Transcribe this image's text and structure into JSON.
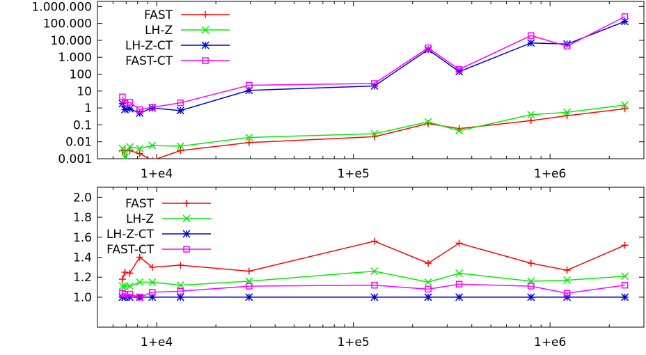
{
  "chart_data": [
    {
      "type": "line",
      "title": "",
      "xlabel": "",
      "ylabel": "",
      "x_scale": "log",
      "y_scale": "log",
      "xlim": [
        5000,
        3000000
      ],
      "ylim": [
        0.001,
        2000000
      ],
      "x_ticks": [
        {
          "value": 10000,
          "label": "1+e4"
        },
        {
          "value": 100000,
          "label": "1+e5"
        },
        {
          "value": 1000000,
          "label": "1+e6"
        }
      ],
      "y_ticks": [
        {
          "value": 0.001,
          "label": "0.001"
        },
        {
          "value": 0.01,
          "label": "0.01"
        },
        {
          "value": 0.1,
          "label": "0.1"
        },
        {
          "value": 1,
          "label": "1"
        },
        {
          "value": 10,
          "label": "10"
        },
        {
          "value": 100,
          "label": "100"
        },
        {
          "value": 1000,
          "label": "1.000"
        },
        {
          "value": 10000,
          "label": "10.000"
        },
        {
          "value": 100000,
          "label": "100.000"
        },
        {
          "value": 1000000,
          "label": "1.000.000"
        }
      ],
      "grid": false,
      "legend_position": "top-left",
      "series": [
        {
          "name": "FAST",
          "color": "#ff0000",
          "marker": "plus",
          "x": [
            6700,
            6900,
            7300,
            8200,
            9500,
            13200,
            29500,
            128000,
            240000,
            345000,
            800000,
            1220000,
            2400000
          ],
          "y": [
            0.003,
            0.003,
            0.003,
            0.002,
            0.0008,
            0.003,
            0.009,
            0.02,
            0.12,
            0.06,
            0.18,
            0.35,
            0.9
          ]
        },
        {
          "name": "LH-Z",
          "color": "#00ee00",
          "marker": "x",
          "x": [
            6700,
            6900,
            7300,
            8200,
            9500,
            13200,
            29500,
            128000,
            240000,
            345000,
            800000,
            1220000,
            2400000
          ],
          "y": [
            0.004,
            0.0012,
            0.005,
            0.004,
            0.006,
            0.0055,
            0.018,
            0.03,
            0.15,
            0.045,
            0.4,
            0.55,
            1.5
          ]
        },
        {
          "name": "LH-Z-CT",
          "color": "#0000cc",
          "marker": "star",
          "x": [
            6700,
            6900,
            7300,
            8200,
            9500,
            13200,
            29500,
            128000,
            240000,
            345000,
            800000,
            1220000,
            2400000
          ],
          "y": [
            1.8,
            0.8,
            0.9,
            0.5,
            1.0,
            0.7,
            11,
            20,
            2800,
            140,
            7000,
            6000,
            130000
          ]
        },
        {
          "name": "FAST-CT",
          "color": "#ff00ff",
          "marker": "square",
          "x": [
            6700,
            6900,
            7300,
            8200,
            9500,
            13200,
            29500,
            128000,
            240000,
            345000,
            800000,
            1220000,
            2400000
          ],
          "y": [
            4.5,
            2.0,
            2.2,
            0.8,
            1.1,
            2.0,
            22,
            28,
            3600,
            190,
            19000,
            4500,
            250000
          ]
        }
      ]
    },
    {
      "type": "line",
      "title": "",
      "xlabel": "",
      "ylabel": "",
      "x_scale": "log",
      "y_scale": "linear",
      "xlim": [
        5000,
        3000000
      ],
      "ylim": [
        0.7,
        2.1
      ],
      "x_ticks": [
        {
          "value": 10000,
          "label": "1+e4"
        },
        {
          "value": 100000,
          "label": "1+e5"
        },
        {
          "value": 1000000,
          "label": "1+e6"
        }
      ],
      "y_ticks": [
        {
          "value": 1.0,
          "label": "1.0"
        },
        {
          "value": 1.2,
          "label": "1.2"
        },
        {
          "value": 1.4,
          "label": "1.4"
        },
        {
          "value": 1.6,
          "label": "1.6"
        },
        {
          "value": 1.8,
          "label": "1.8"
        },
        {
          "value": 2.0,
          "label": "2.0"
        }
      ],
      "grid": false,
      "legend_position": "top-left",
      "series": [
        {
          "name": "FAST",
          "color": "#ff0000",
          "marker": "plus",
          "x": [
            6700,
            6900,
            7300,
            8200,
            9500,
            13200,
            29500,
            128000,
            240000,
            345000,
            800000,
            1220000,
            2400000
          ],
          "y": [
            1.18,
            1.25,
            1.24,
            1.4,
            1.3,
            1.32,
            1.26,
            1.56,
            1.34,
            1.54,
            1.34,
            1.27,
            1.52
          ]
        },
        {
          "name": "LH-Z",
          "color": "#00ee00",
          "marker": "x",
          "x": [
            6700,
            6900,
            7300,
            8200,
            9500,
            13200,
            29500,
            128000,
            240000,
            345000,
            800000,
            1220000,
            2400000
          ],
          "y": [
            1.11,
            1.11,
            1.11,
            1.15,
            1.15,
            1.12,
            1.16,
            1.26,
            1.15,
            1.24,
            1.16,
            1.17,
            1.21
          ]
        },
        {
          "name": "LH-Z-CT",
          "color": "#0000cc",
          "marker": "star",
          "x": [
            6700,
            6900,
            7300,
            8200,
            9500,
            13200,
            29500,
            128000,
            240000,
            345000,
            800000,
            1220000,
            2400000
          ],
          "y": [
            1.0,
            1.0,
            1.0,
            1.0,
            1.0,
            1.0,
            1.0,
            1.0,
            1.0,
            1.0,
            1.0,
            1.0,
            1.0
          ]
        },
        {
          "name": "FAST-CT",
          "color": "#ff00ff",
          "marker": "square",
          "x": [
            6700,
            6900,
            7300,
            8200,
            9500,
            13200,
            29500,
            128000,
            240000,
            345000,
            800000,
            1220000,
            2400000
          ],
          "y": [
            1.04,
            1.03,
            1.03,
            1.0,
            1.05,
            1.06,
            1.11,
            1.12,
            1.08,
            1.13,
            1.11,
            1.04,
            1.12
          ]
        }
      ]
    }
  ]
}
